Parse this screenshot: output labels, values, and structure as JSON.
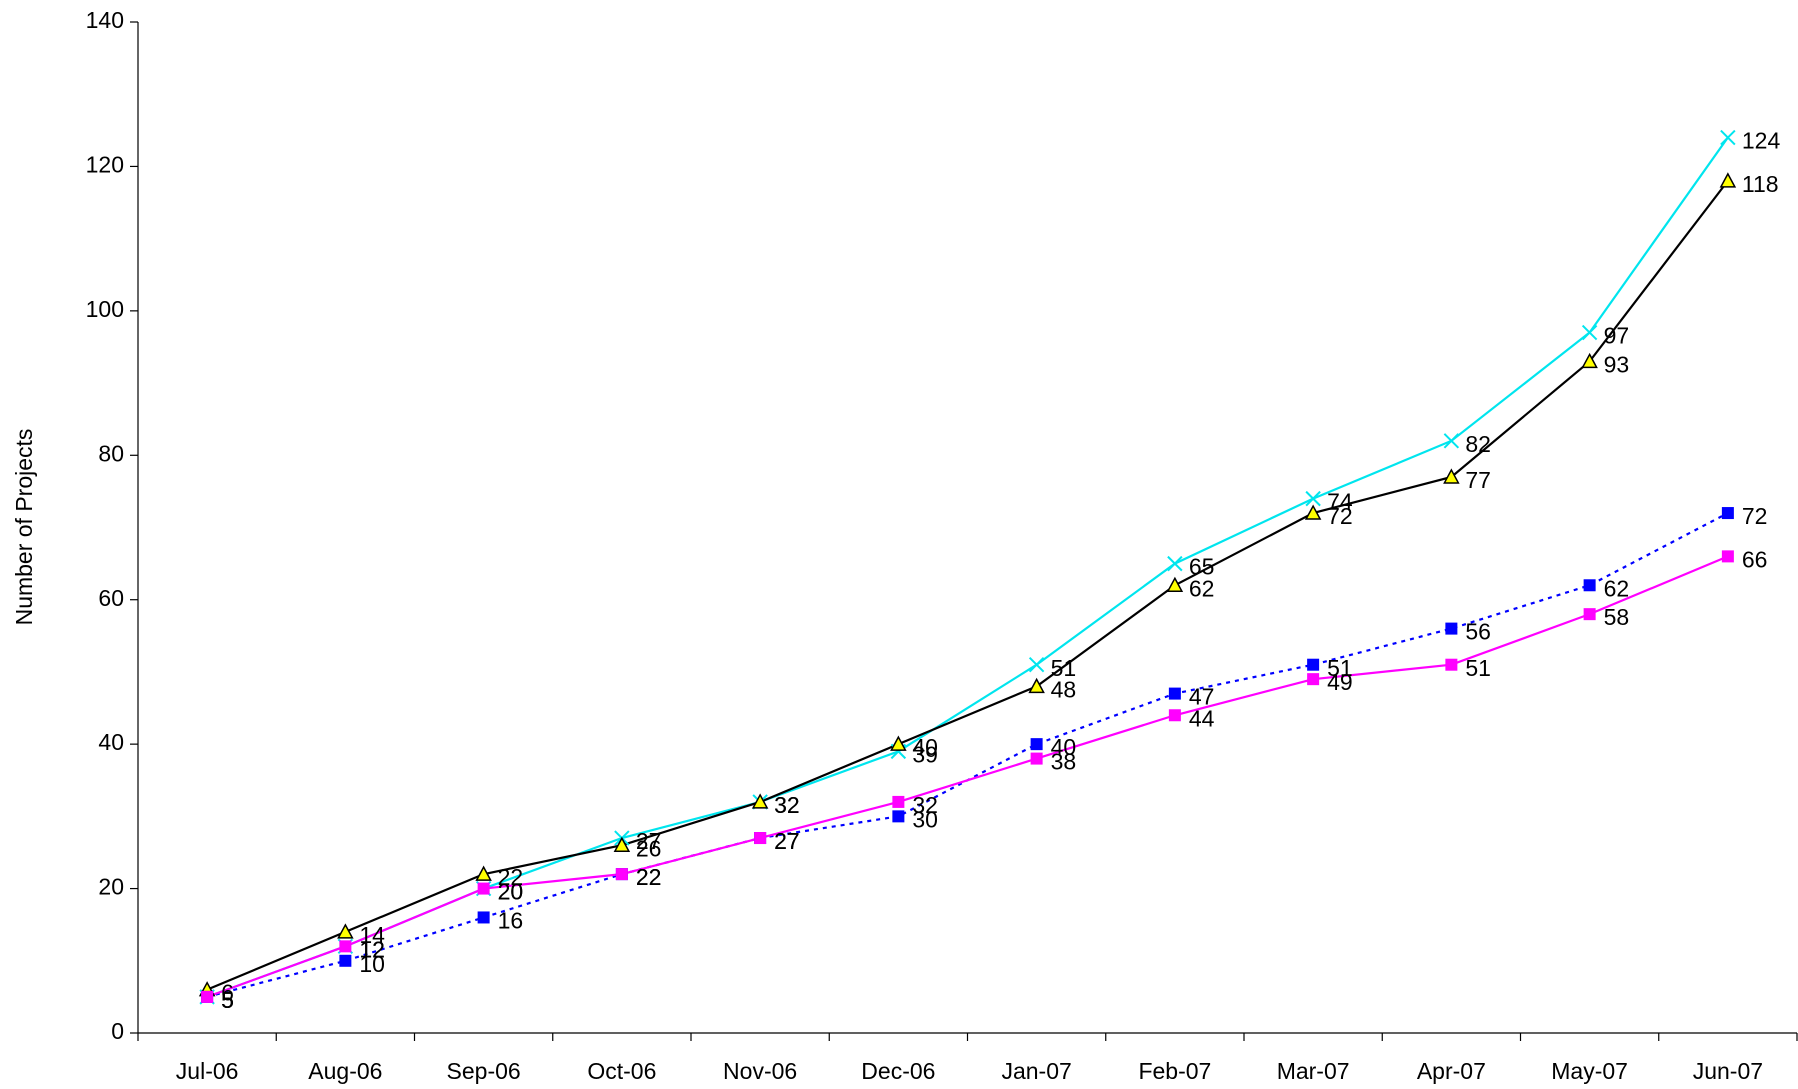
{
  "chart_data": {
    "type": "line",
    "y_label": "Number of Projects",
    "categories": [
      "Jul-06",
      "Aug-06",
      "Sep-06",
      "Oct-06",
      "Nov-06",
      "Dec-06",
      "Jan-07",
      "Feb-07",
      "Mar-07",
      "Apr-07",
      "May-07",
      "Jun-07"
    ],
    "series": [
      {
        "color": "#00e5ee",
        "marker": "x",
        "dash": false,
        "values": [
          5,
          12,
          20,
          27,
          32,
          39,
          51,
          65,
          74,
          82,
          97,
          124
        ]
      },
      {
        "color": "#000000",
        "marker": "triangle",
        "marker_color": "#ffff00",
        "dash": false,
        "values": [
          6,
          14,
          22,
          26,
          32,
          40,
          48,
          62,
          72,
          77,
          93,
          118
        ]
      },
      {
        "color": "#0000ff",
        "marker": "square",
        "dash": true,
        "values": [
          5,
          10,
          16,
          22,
          27,
          30,
          40,
          47,
          51,
          56,
          62,
          72
        ]
      },
      {
        "color": "#ff00ff",
        "marker": "square",
        "dash": false,
        "values": [
          5,
          12,
          20,
          22,
          27,
          32,
          38,
          44,
          49,
          51,
          58,
          66
        ]
      }
    ],
    "ylim": [
      0,
      140
    ],
    "yticks": [
      0,
      20,
      40,
      60,
      80,
      100,
      120,
      140
    ]
  }
}
